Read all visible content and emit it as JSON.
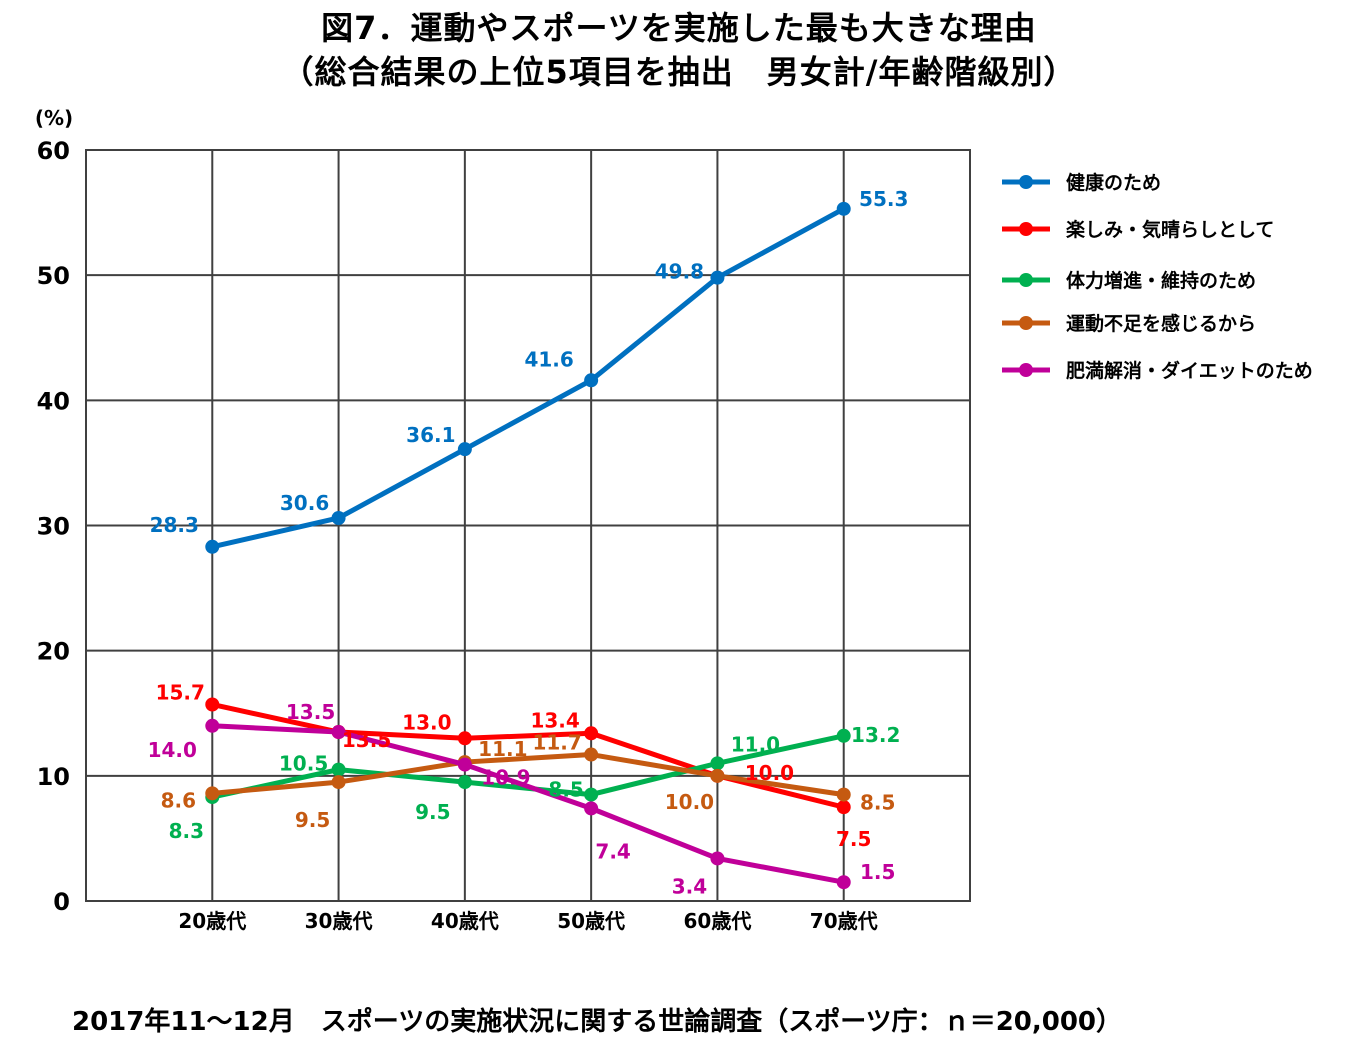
{
  "title_line1": "図7．運動やスポーツを実施した最も大きな理由",
  "title_line2": "（総合結果の上位5項目を抽出　男女計/年齢階級別）",
  "footer": "2017年11～12月　スポーツの実施状況に関する世論調査（スポーツ庁：ｎ＝20,000）",
  "chart_data": {
    "type": "line",
    "ylabel": "(%)",
    "ylim": [
      0,
      60
    ],
    "yticks": [
      0,
      10,
      20,
      30,
      40,
      50,
      60
    ],
    "ytick_labels": [
      "0",
      "10",
      "20",
      "30",
      "40",
      "50",
      "60"
    ],
    "categories": [
      "20歳代",
      "30歳代",
      "40歳代",
      "50歳代",
      "60歳代",
      "70歳代"
    ],
    "grid": true,
    "legend_position": "right",
    "series": [
      {
        "name": "健康のため",
        "color": "#0070C0",
        "values": [
          28.3,
          30.6,
          36.1,
          41.6,
          49.8,
          55.3
        ],
        "labels": [
          "28.3",
          "30.6",
          "36.1",
          "41.6",
          "49.8",
          "55.3"
        ]
      },
      {
        "name": "楽しみ・気晴らしとして",
        "color": "#FF0000",
        "values": [
          15.7,
          13.5,
          13.0,
          13.4,
          10.0,
          7.5
        ],
        "labels": [
          "15.7",
          "13.5",
          "13.0",
          "13.4",
          "10.0",
          "7.5"
        ]
      },
      {
        "name": "体力増進・維持のため",
        "color": "#00B050",
        "values": [
          8.3,
          10.5,
          9.5,
          8.5,
          11.0,
          13.2
        ],
        "labels": [
          "8.3",
          "10.5",
          "9.5",
          "8.5",
          "11.0",
          "13.2"
        ]
      },
      {
        "name": "運動不足を感じるから",
        "color": "#C55A11",
        "values": [
          8.6,
          9.5,
          11.1,
          11.7,
          10.0,
          8.5
        ],
        "labels": [
          "8.6",
          "9.5",
          "11.1",
          "11.7",
          "10.0",
          "8.5"
        ]
      },
      {
        "name": "肥満解消・ダイエットのため",
        "color": "#C00099",
        "values": [
          14.0,
          13.5,
          10.9,
          7.4,
          3.4,
          1.5
        ],
        "labels": [
          "14.0",
          "13.5",
          "10.9",
          "7.4",
          "3.4",
          "1.5"
        ]
      }
    ]
  }
}
